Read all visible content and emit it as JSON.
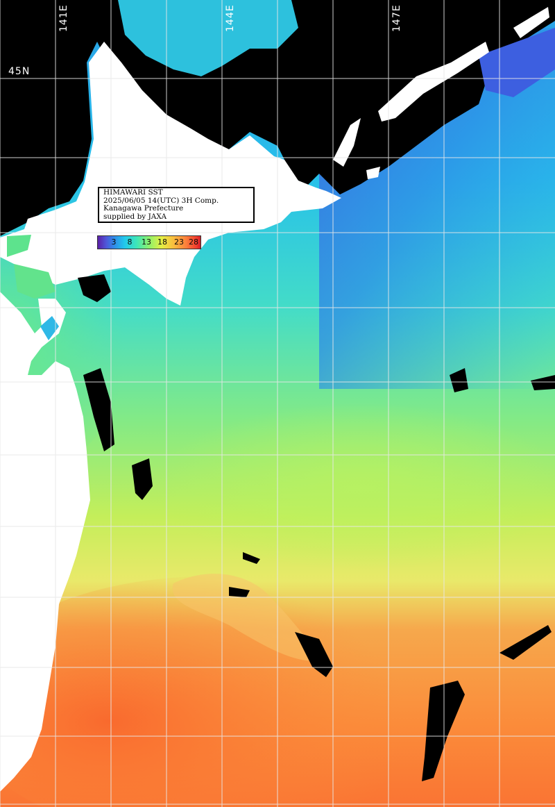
{
  "map": {
    "type": "sea-surface-temperature",
    "region": "Hokkaido and northern Tohoku",
    "colors": {
      "land": "#ffffff",
      "cloud_mask": "#000000",
      "grid": "#e8e8e8",
      "cold": "#2f8ce8",
      "mid": "#8ff06b",
      "warm": "#fb8a3b"
    }
  },
  "info": {
    "line1": "HIMAWARI SST",
    "line2": "2025/06/05 14(UTC) 3H Comp.",
    "line3": "Kanagawa Prefecture",
    "line4": "supplied by JAXA"
  },
  "legend": {
    "ticks": [
      "3",
      "8",
      "13",
      "18",
      "23",
      "28"
    ]
  },
  "grid_labels": {
    "lat": "45N",
    "lon": [
      "141E",
      "144E",
      "147E"
    ]
  }
}
